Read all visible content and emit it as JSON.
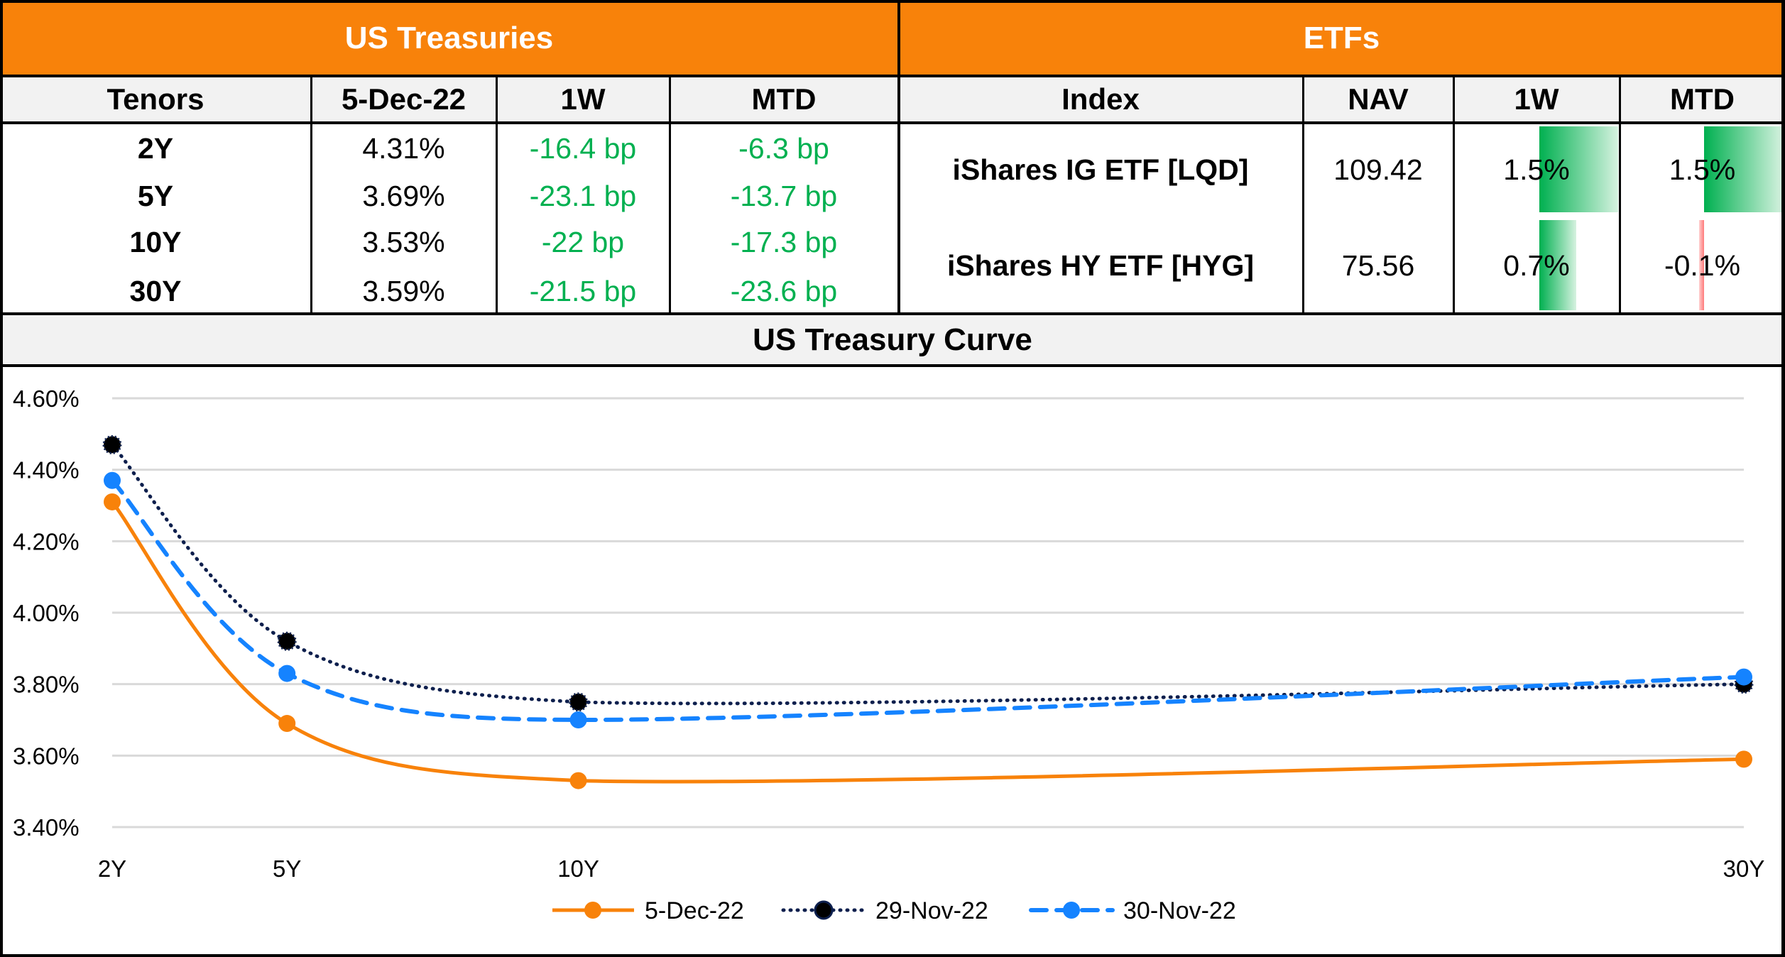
{
  "treasuries": {
    "title": "US Treasuries",
    "headers": [
      "Tenors",
      "5-Dec-22",
      "1W",
      "MTD"
    ],
    "rows": [
      {
        "tenor": "2Y",
        "yield": "4.31%",
        "w1": "-16.4 bp",
        "mtd": "-6.3 bp"
      },
      {
        "tenor": "5Y",
        "yield": "3.69%",
        "w1": "-23.1 bp",
        "mtd": "-13.7 bp"
      },
      {
        "tenor": "10Y",
        "yield": "3.53%",
        "w1": "-22 bp",
        "mtd": "-17.3 bp"
      },
      {
        "tenor": "30Y",
        "yield": "3.59%",
        "w1": "-21.5 bp",
        "mtd": "-23.6 bp"
      }
    ]
  },
  "etfs": {
    "title": "ETFs",
    "headers": [
      "Index",
      "NAV",
      "1W",
      "MTD"
    ],
    "rows": [
      {
        "index": "iShares IG ETF [LQD]",
        "nav": "109.42",
        "w1": "1.5%",
        "w1_value": 1.5,
        "mtd": "1.5%",
        "mtd_value": 1.5
      },
      {
        "index": "iShares HY ETF [HYG]",
        "nav": "75.56",
        "w1": "0.7%",
        "w1_value": 0.7,
        "mtd": "-0.1%",
        "mtd_value": -0.1
      }
    ]
  },
  "colors": {
    "header_band": "#F8820A",
    "header_row": "#F2F2F2",
    "positive_text": "#00B050",
    "bar_positive": "#00B050",
    "bar_negative": "#FF7A7A"
  },
  "chart_data": {
    "type": "line",
    "title": "US Treasury Curve",
    "xlabel": "",
    "ylabel": "",
    "x": [
      2,
      5,
      10,
      30
    ],
    "x_tick_labels": [
      "2Y",
      "5Y",
      "10Y",
      "30Y"
    ],
    "ylim": [
      3.4,
      4.6
    ],
    "y_ticks": [
      3.4,
      3.6,
      3.8,
      4.0,
      4.2,
      4.4,
      4.6
    ],
    "y_tick_labels": [
      "3.40%",
      "3.60%",
      "3.80%",
      "4.00%",
      "4.20%",
      "4.40%",
      "4.60%"
    ],
    "grid": true,
    "legend_position": "bottom",
    "smooth": true,
    "series": [
      {
        "name": "5-Dec-22",
        "values": [
          4.31,
          3.69,
          3.53,
          3.59
        ],
        "color": "#F8820A",
        "style": "solid"
      },
      {
        "name": "29-Nov-22",
        "values": [
          4.47,
          3.92,
          3.75,
          3.8
        ],
        "color": "#0D1F4D",
        "style": "dotted"
      },
      {
        "name": "30-Nov-22",
        "values": [
          4.37,
          3.83,
          3.7,
          3.82
        ],
        "color": "#1583FF",
        "style": "dashed"
      }
    ]
  }
}
